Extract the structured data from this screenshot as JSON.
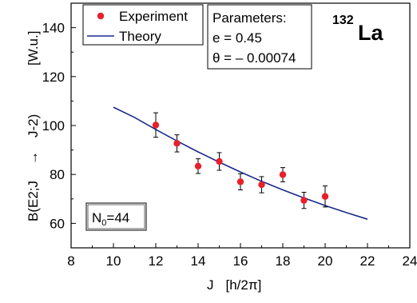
{
  "chart_data": {
    "type": "scatter",
    "xlabel": "J",
    "xunit": "[h/2π]",
    "ylabel": "B(E2;J",
    "ylabel_arrow": "→",
    "ylabel_tail": "J-2)",
    "yunit": "[W.u.]",
    "xlim": [
      8,
      24
    ],
    "ylim": [
      50,
      150
    ],
    "xticks": [
      8,
      10,
      12,
      14,
      16,
      18,
      20,
      22,
      24
    ],
    "yticks": [
      60,
      80,
      100,
      120,
      140
    ],
    "grid": false,
    "legend_position": "top-left",
    "series": [
      {
        "name": "Experiment",
        "kind": "points-with-errorbars",
        "color": "#e8202a",
        "x": [
          12,
          13,
          14,
          15,
          16,
          17,
          18,
          19,
          20
        ],
        "y": [
          100.2,
          92.7,
          83.4,
          85.3,
          77.0,
          75.8,
          79.9,
          69.4,
          71.0
        ],
        "err": [
          5.0,
          3.5,
          3.0,
          3.6,
          3.3,
          3.3,
          2.9,
          3.3,
          4.3
        ]
      },
      {
        "name": "Theory",
        "kind": "line",
        "color": "#1a2a8c",
        "x": [
          10,
          11,
          12,
          13,
          14,
          15,
          16,
          17,
          18,
          19,
          20,
          21,
          22
        ],
        "y": [
          107.5,
          103.3,
          98.4,
          93.7,
          89.2,
          85.0,
          81.0,
          77.2,
          73.7,
          70.4,
          67.3,
          64.4,
          61.7
        ]
      }
    ],
    "parameters_box": {
      "title": "Parameters:",
      "line1": "e = 0.45",
      "line2": "θ = – 0.00074"
    },
    "nucleus": {
      "mass_number": "132",
      "symbol": "La"
    },
    "n0_box": {
      "base": "N",
      "subscript": "0",
      "value": "=44"
    }
  }
}
